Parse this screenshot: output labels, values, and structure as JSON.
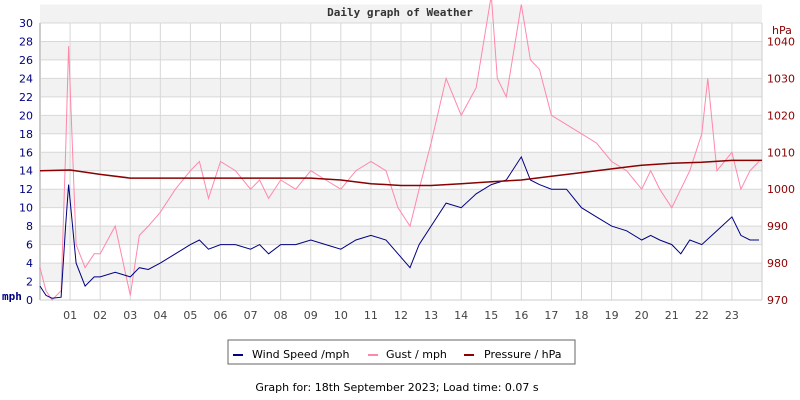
{
  "chart_data": {
    "type": "line",
    "title": "Daily graph of Weather",
    "footer": "Graph for: 18th September 2023; Load time: 0.07 s",
    "left_axis": {
      "label": "mph",
      "range": [
        0,
        30
      ],
      "ticks": [
        "0",
        "2",
        "4",
        "6",
        "8",
        "10",
        "12",
        "14",
        "16",
        "18",
        "20",
        "22",
        "24",
        "26",
        "28",
        "30"
      ],
      "color": "#000080"
    },
    "right_axis": {
      "label": "hPa",
      "range": [
        970,
        1045
      ],
      "ticks": [
        "970",
        "980",
        "990",
        "1000",
        "1010",
        "1020",
        "1030",
        "1040"
      ],
      "color": "#8b0000"
    },
    "x_axis": {
      "range": [
        0,
        24
      ],
      "ticks": [
        "01",
        "02",
        "03",
        "04",
        "05",
        "06",
        "07",
        "08",
        "09",
        "10",
        "11",
        "12",
        "13",
        "14",
        "15",
        "16",
        "17",
        "18",
        "19",
        "20",
        "21",
        "22",
        "23"
      ]
    },
    "grid": true,
    "legend_position": "bottom",
    "series": [
      {
        "name": "Wind Speed /mph",
        "axis": "left",
        "color": "#000080",
        "x": [
          0,
          0.2,
          0.4,
          0.7,
          0.85,
          0.95,
          1.2,
          1.5,
          1.8,
          2,
          2.5,
          3,
          3.3,
          3.6,
          4,
          4.5,
          5,
          5.3,
          5.6,
          6,
          6.5,
          7,
          7.3,
          7.6,
          8,
          8.5,
          9,
          9.5,
          10,
          10.5,
          11,
          11.5,
          11.9,
          12.3,
          12.6,
          13,
          13.5,
          14,
          14.5,
          15,
          15.5,
          16,
          16.3,
          16.6,
          17,
          17.5,
          18,
          18.5,
          19,
          19.5,
          20,
          20.3,
          20.6,
          21,
          21.3,
          21.6,
          22,
          22.5,
          23,
          23.3,
          23.6,
          23.9
        ],
        "values": [
          1.5,
          0.5,
          0.2,
          0.3,
          8,
          12.5,
          4,
          1.5,
          2.5,
          2.5,
          3,
          2.5,
          3.5,
          3.3,
          4,
          5,
          6,
          6.5,
          5.5,
          6,
          6,
          5.5,
          6,
          5,
          6,
          6,
          6.5,
          6,
          5.5,
          6.5,
          7,
          6.5,
          5,
          3.5,
          6,
          8,
          10.5,
          10,
          11.5,
          12.5,
          13,
          15.5,
          13,
          12.5,
          12,
          12,
          10,
          9,
          8,
          7.5,
          6.5,
          7,
          6.5,
          6,
          5,
          6.5,
          6,
          7.5,
          9,
          7,
          6.5,
          6.5
        ]
      },
      {
        "name": "Gust / mph",
        "axis": "left",
        "color": "#ff88aa",
        "x": [
          0,
          0.2,
          0.4,
          0.7,
          0.85,
          0.95,
          1.2,
          1.5,
          1.8,
          2,
          2.5,
          3,
          3.3,
          3.6,
          4,
          4.5,
          5,
          5.3,
          5.6,
          6,
          6.5,
          7,
          7.3,
          7.6,
          8,
          8.5,
          9,
          9.5,
          10,
          10.5,
          11,
          11.5,
          11.9,
          12.3,
          12.6,
          13,
          13.5,
          14,
          14.5,
          15,
          15.2,
          15.5,
          16,
          16.3,
          16.6,
          17,
          17.5,
          18,
          18.5,
          19,
          19.5,
          20,
          20.3,
          20.6,
          21,
          21.3,
          21.6,
          22,
          22.2,
          22.5,
          23,
          23.3,
          23.6,
          23.9
        ],
        "values": [
          3.5,
          1,
          0,
          1,
          16,
          27.5,
          6,
          3.5,
          5,
          5,
          8,
          0.5,
          7,
          8,
          9.5,
          12,
          14,
          15,
          11,
          15,
          14,
          12,
          13,
          11,
          13,
          12,
          14,
          13,
          12,
          14,
          15,
          14,
          10,
          8,
          12,
          17,
          24,
          20,
          23,
          33,
          24,
          22,
          32,
          26,
          25,
          20,
          19,
          18,
          17,
          15,
          14,
          12,
          14,
          12,
          10,
          12,
          14,
          18,
          24,
          14,
          16,
          12,
          14,
          15
        ]
      },
      {
        "name": "Pressure / hPa",
        "axis": "right",
        "color": "#8b0000",
        "x": [
          0,
          1,
          2,
          3,
          4,
          5,
          6,
          7,
          8,
          9,
          10,
          11,
          12,
          13,
          14,
          15,
          16,
          17,
          18,
          19,
          20,
          21,
          22,
          23,
          24
        ],
        "values": [
          1005,
          1005.2,
          1004,
          1003,
          1003,
          1003,
          1003,
          1003,
          1003,
          1003,
          1002.5,
          1001.5,
          1001,
          1001,
          1001.5,
          1002,
          1002.5,
          1003.5,
          1004.5,
          1005.5,
          1006.5,
          1007,
          1007.3,
          1007.8,
          1007.8
        ]
      }
    ]
  }
}
